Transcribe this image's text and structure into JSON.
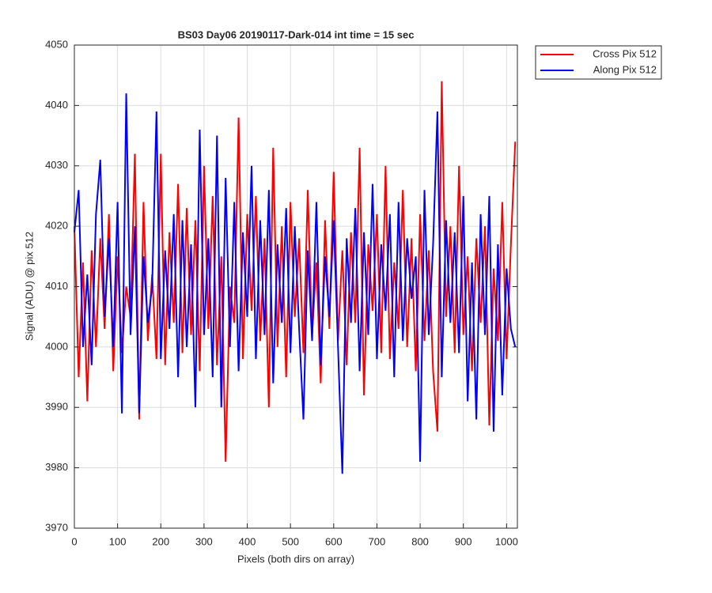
{
  "chart_data": {
    "type": "line",
    "title": "BS03 Day06 20190117-Dark-014 int time = 15 sec",
    "xlabel": "Pixels (both dirs on array)",
    "ylabel": "Signal (ADU) @ pix 512",
    "x": [
      0,
      10,
      20,
      30,
      40,
      50,
      60,
      70,
      80,
      90,
      100,
      110,
      120,
      130,
      140,
      150,
      160,
      170,
      180,
      190,
      200,
      210,
      220,
      230,
      240,
      250,
      260,
      270,
      280,
      290,
      300,
      310,
      320,
      330,
      340,
      350,
      360,
      370,
      380,
      390,
      400,
      410,
      420,
      430,
      440,
      450,
      460,
      470,
      480,
      490,
      500,
      510,
      520,
      530,
      540,
      550,
      560,
      570,
      580,
      590,
      600,
      610,
      620,
      630,
      640,
      650,
      660,
      670,
      680,
      690,
      700,
      710,
      720,
      730,
      740,
      750,
      760,
      770,
      780,
      790,
      800,
      810,
      820,
      830,
      840,
      850,
      860,
      870,
      880,
      890,
      900,
      910,
      920,
      930,
      940,
      950,
      960,
      970,
      980,
      990,
      1000,
      1010,
      1020
    ],
    "series": [
      {
        "name": "Cross Pix 512",
        "color": "#ff0000",
        "values": [
          4020,
          3995,
          4014,
          3991,
          4016,
          4000,
          4018,
          4003,
          4022,
          3996,
          4015,
          3999,
          4010,
          4005,
          4032,
          3988,
          4024,
          4001,
          4012,
          3998,
          4032,
          3997,
          4019,
          4004,
          4027,
          3999,
          4023,
          4002,
          4021,
          3996,
          4030,
          4003,
          4025,
          3997,
          4015,
          3981,
          4010,
          4004,
          4038,
          3998,
          4022,
          4006,
          4025,
          4001,
          4018,
          3990,
          4033,
          4000,
          4020,
          3995,
          4024,
          4005,
          4018,
          3999,
          4026,
          4002,
          4014,
          3994,
          4021,
          4003,
          4029,
          4001,
          4016,
          3997,
          4019,
          4004,
          4033,
          3992,
          4017,
          4006,
          4022,
          3999,
          4030,
          3998,
          4014,
          4003,
          4026,
          4000,
          4018,
          3996,
          4022,
          4001,
          4016,
          3996,
          3986,
          4044,
          4005,
          4020,
          3999,
          4030,
          4002,
          4015,
          3996,
          4018,
          4004,
          4020,
          3987,
          4013,
          4001,
          4024,
          3998,
          4017,
          4034
        ]
      },
      {
        "name": "Along Pix 512",
        "color": "#0000ff",
        "values": [
          4019,
          4026,
          4000,
          4012,
          3997,
          4022,
          4031,
          4005,
          4018,
          4000,
          4024,
          3989,
          4042,
          4002,
          4020,
          3989,
          4015,
          4004,
          4010,
          4039,
          3998,
          4016,
          4003,
          4022,
          3995,
          4021,
          4000,
          4017,
          3990,
          4036,
          4002,
          4018,
          3995,
          4035,
          3990,
          4028,
          4000,
          4024,
          3996,
          4019,
          4005,
          4030,
          3998,
          4021,
          4002,
          4026,
          3994,
          4017,
          4004,
          4023,
          3999,
          4020,
          4003,
          3988,
          4016,
          4001,
          4024,
          3997,
          4015,
          4005,
          4021,
          4000,
          3979,
          4018,
          4004,
          4023,
          3996,
          4019,
          4002,
          4027,
          3998,
          4017,
          4006,
          4022,
          3995,
          4024,
          4001,
          4018,
          4008,
          4015,
          3981,
          4026,
          4002,
          4017,
          4039,
          3995,
          4021,
          4004,
          4019,
          3999,
          4025,
          3991,
          4014,
          3988,
          4022,
          4002,
          4025,
          3986,
          4017,
          3992,
          4013,
          4003,
          4000
        ]
      }
    ],
    "xlim": [
      0,
      1025
    ],
    "ylim": [
      3970,
      4050
    ],
    "xticks": [
      0,
      100,
      200,
      300,
      400,
      500,
      600,
      700,
      800,
      900,
      1000
    ],
    "yticks": [
      3970,
      3980,
      3990,
      4000,
      4010,
      4020,
      4030,
      4040,
      4050
    ],
    "grid": true,
    "legend": "northeastoutside"
  }
}
